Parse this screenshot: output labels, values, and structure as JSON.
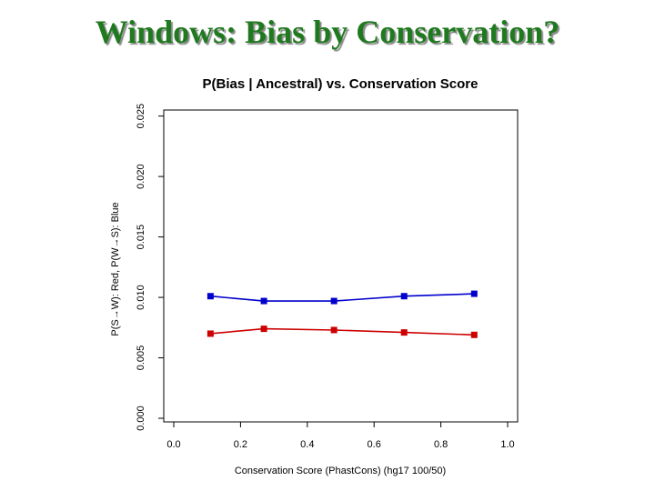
{
  "slide": {
    "title": "Windows: Bias by Conservation?"
  },
  "chart_data": {
    "type": "line",
    "title": "P(Bias | Ancestral) vs. Conservation Score",
    "xlabel": "Conservation Score (PhastCons) (hg17 100/50)",
    "ylabel": "P(S→W): Red, P(W→S): Blue",
    "xlim": [
      -0.03,
      1.03
    ],
    "ylim": [
      -0.0003,
      0.0255
    ],
    "x_ticks": [
      0.0,
      0.2,
      0.4,
      0.6,
      0.8,
      1.0
    ],
    "x_tick_labels": [
      "0.0",
      "0.2",
      "0.4",
      "0.6",
      "0.8",
      "1.0"
    ],
    "y_ticks": [
      0.0,
      0.005,
      0.01,
      0.015,
      0.02,
      0.025
    ],
    "y_tick_labels": [
      "0.000",
      "0.005",
      "0.010",
      "0.015",
      "0.020",
      "0.025"
    ],
    "x": [
      0.11,
      0.27,
      0.48,
      0.69,
      0.9
    ],
    "series": [
      {
        "name": "P(W→S)",
        "color": "#0000cc",
        "values": [
          0.0101,
          0.0097,
          0.0097,
          0.0101,
          0.0103
        ]
      },
      {
        "name": "P(S→W)",
        "color": "#cc0000",
        "values": [
          0.007,
          0.0074,
          0.0073,
          0.0071,
          0.0069
        ]
      }
    ],
    "grid": false,
    "legend": "none"
  }
}
